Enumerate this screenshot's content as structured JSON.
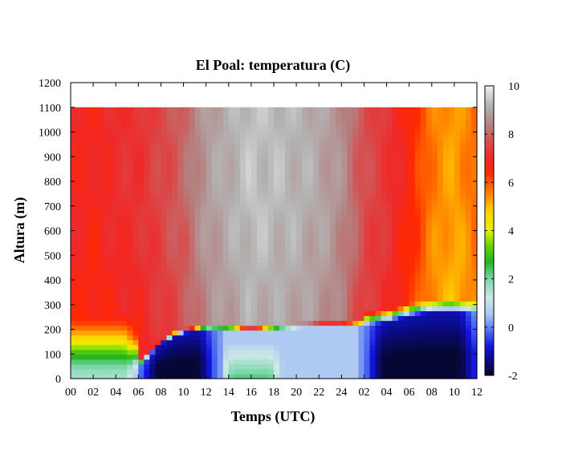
{
  "chart_data": {
    "type": "heatmap",
    "title": "El Poal: temperatura (C)",
    "xlabel": "Temps (UTC)",
    "ylabel": "Altura (m)",
    "xticks": [
      "00",
      "02",
      "04",
      "06",
      "08",
      "10",
      "12",
      "14",
      "16",
      "18",
      "20",
      "22",
      "24",
      "02",
      "04",
      "06",
      "08",
      "10",
      "12"
    ],
    "yticks": [
      "0",
      "100",
      "200",
      "300",
      "400",
      "500",
      "600",
      "700",
      "800",
      "900",
      "1000",
      "1100",
      "1200"
    ],
    "ylim": [
      0,
      1200
    ],
    "y_data_top": 1100,
    "x_hours_range": [
      0,
      36
    ],
    "colorbar": {
      "ticks": [
        "-2",
        "0",
        "2",
        "4",
        "6",
        "8",
        "10"
      ],
      "range": [
        -2,
        10
      ],
      "colormap": [
        {
          "v": -2.0,
          "color": "#060624"
        },
        {
          "v": -1.4,
          "color": "#0a0a80"
        },
        {
          "v": -0.8,
          "color": "#1414e0"
        },
        {
          "v": -0.2,
          "color": "#4a6af0"
        },
        {
          "v": 0.5,
          "color": "#a8c4f4"
        },
        {
          "v": 1.2,
          "color": "#cfe9e9"
        },
        {
          "v": 2.0,
          "color": "#78d6a8"
        },
        {
          "v": 2.7,
          "color": "#22b422"
        },
        {
          "v": 3.4,
          "color": "#66d600"
        },
        {
          "v": 4.0,
          "color": "#e6f000"
        },
        {
          "v": 4.8,
          "color": "#ffd200"
        },
        {
          "v": 5.6,
          "color": "#ff7a00"
        },
        {
          "v": 6.4,
          "color": "#ff2800"
        },
        {
          "v": 7.0,
          "color": "#f02828"
        },
        {
          "v": 7.6,
          "color": "#dc4646"
        },
        {
          "v": 8.4,
          "color": "#b48282"
        },
        {
          "v": 9.2,
          "color": "#b4b4b4"
        },
        {
          "v": 10.0,
          "color": "#f0f0f0"
        }
      ]
    },
    "grid": false,
    "field": {
      "upper_band": [
        [
          0,
          7.0
        ],
        [
          2,
          6.8
        ],
        [
          4,
          7.1
        ],
        [
          6,
          7.2
        ],
        [
          8,
          7.6
        ],
        [
          10,
          8.0
        ],
        [
          12,
          8.8
        ],
        [
          14,
          9.1
        ],
        [
          16,
          9.4
        ],
        [
          18,
          9.3
        ],
        [
          20,
          9.2
        ],
        [
          22,
          9.0
        ],
        [
          24,
          8.6
        ],
        [
          26,
          7.7
        ],
        [
          28,
          7.3
        ],
        [
          30,
          6.6
        ],
        [
          32,
          5.6
        ],
        [
          34,
          5.2
        ],
        [
          36,
          5.8
        ]
      ],
      "surface_cold_layer_top": [
        [
          0,
          60
        ],
        [
          2,
          20
        ],
        [
          4,
          30
        ],
        [
          6,
          50
        ],
        [
          8,
          140
        ],
        [
          9.5,
          180
        ],
        [
          12,
          200
        ],
        [
          14,
          200
        ],
        [
          16,
          190
        ],
        [
          18,
          200
        ],
        [
          20,
          205
        ],
        [
          22,
          210
        ],
        [
          24,
          210
        ],
        [
          26,
          215
        ],
        [
          28,
          225
        ],
        [
          30,
          250
        ],
        [
          32,
          265
        ],
        [
          34,
          265
        ],
        [
          36,
          265
        ]
      ]
    }
  }
}
